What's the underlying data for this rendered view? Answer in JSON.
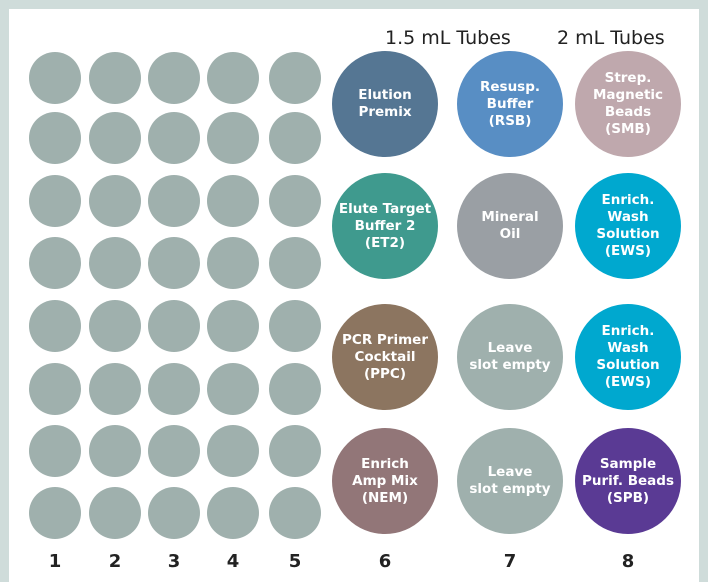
{
  "headers": [
    "1.5 mL Tubes",
    "2 mL Tubes"
  ],
  "column_numbers": [
    "1",
    "2",
    "3",
    "4",
    "5",
    "6",
    "7",
    "8"
  ],
  "plate": {
    "columns": 5,
    "rows": 8,
    "well_color": "#9fb0ad"
  },
  "tubes": [
    [
      {
        "label": "Elution\nPremix",
        "color": "#557693"
      },
      {
        "label": "Elute Target\nBuffer 2\n(ET2)",
        "color": "#3f9a8e"
      },
      {
        "label": "PCR Primer\nCocktail\n(PPC)",
        "color": "#8c7560"
      },
      {
        "label": "Enrich\nAmp Mix\n(NEM)",
        "color": "#927678"
      }
    ],
    [
      {
        "label": "Resusp.\nBuffer\n(RSB)",
        "color": "#588ec4"
      },
      {
        "label": "Mineral\nOil",
        "color": "#9a9fa4"
      },
      {
        "label": "Leave\nslot empty",
        "color": "#9fb0ad"
      },
      {
        "label": "Leave\nslot empty",
        "color": "#9fb0ad"
      }
    ],
    [
      {
        "label": "Strep.\nMagnetic\nBeads\n(SMB)",
        "color": "#bfa8ad"
      },
      {
        "label": "Enrich.\nWash\nSolution\n(EWS)",
        "color": "#00a8cf"
      },
      {
        "label": "Enrich.\nWash\nSolution\n(EWS)",
        "color": "#00a8cf"
      },
      {
        "label": "Sample\nPurif. Beads\n(SPB)",
        "color": "#5a3a94"
      }
    ]
  ]
}
